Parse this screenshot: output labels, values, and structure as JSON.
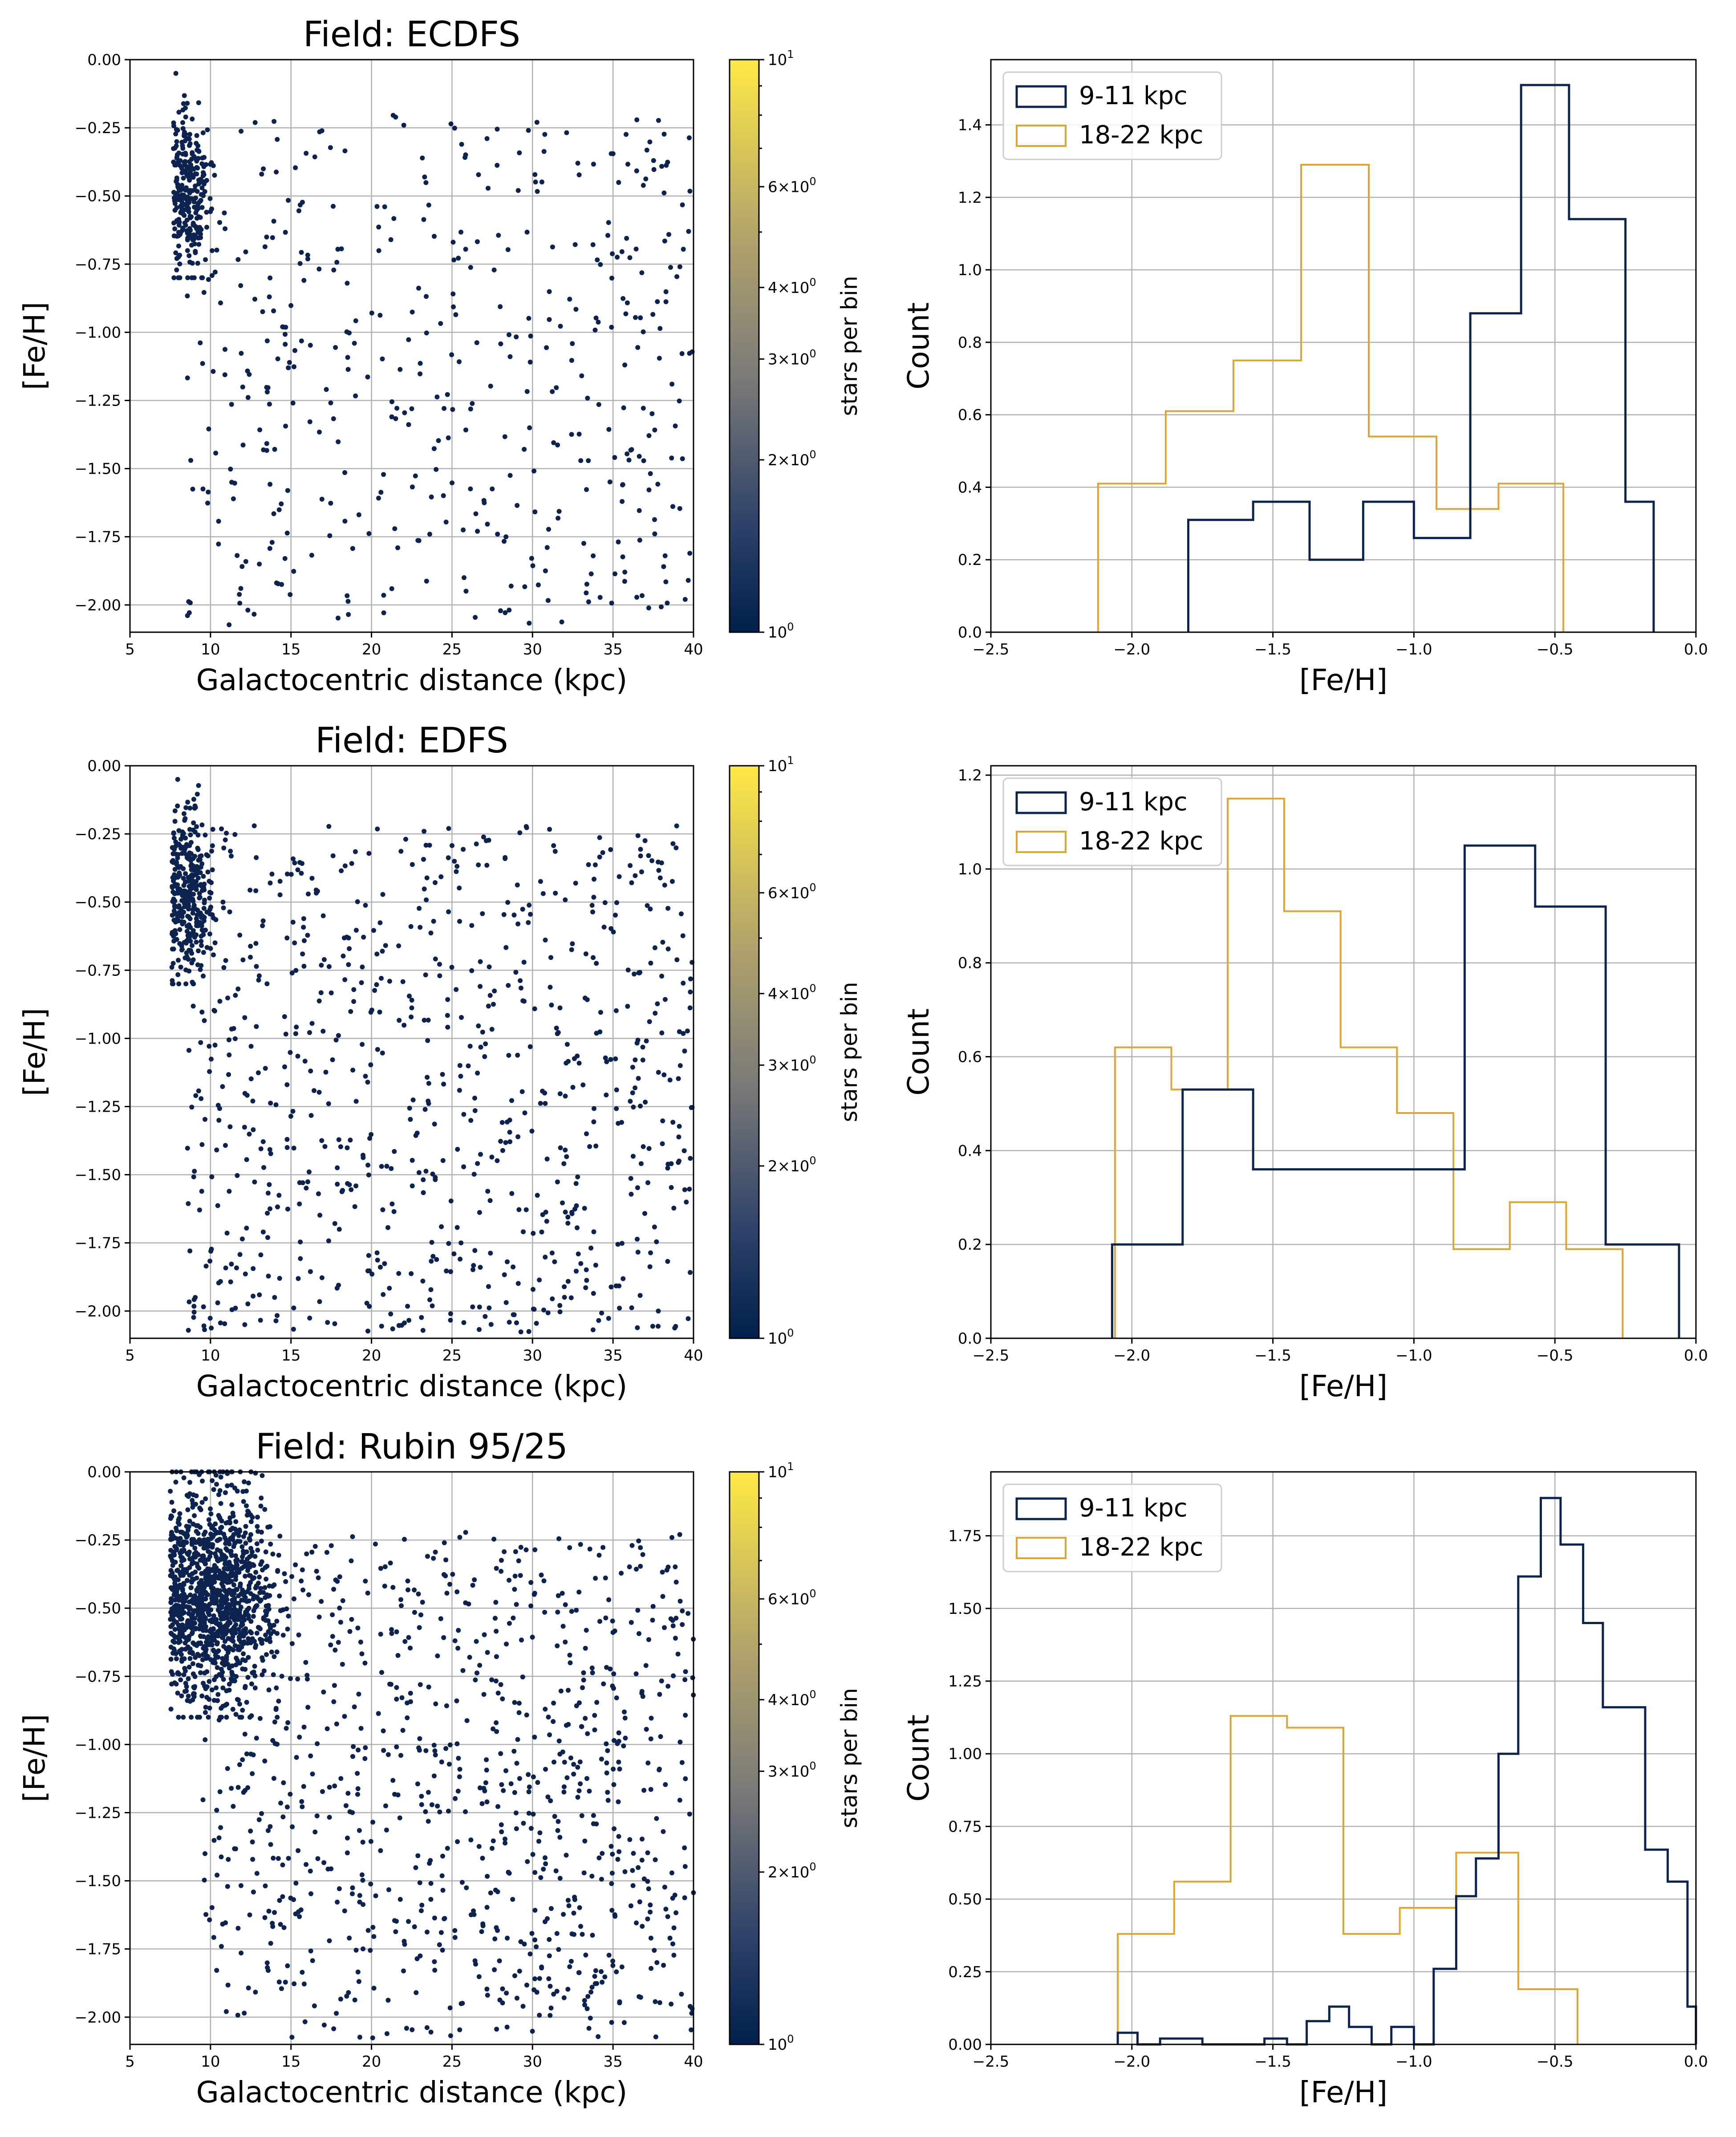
{
  "figure": {
    "colors": {
      "point": "#0c2350",
      "inner": "#0c2350",
      "outer": "#dba633",
      "cmap_low": "#00204c",
      "cmap_mid": "#7c7b78",
      "cmap_high": "#ffe945",
      "grid": "#b0b0b0"
    },
    "rows": [
      {
        "scatter_title": "Field: ECDFS"
      },
      {
        "scatter_title": "Field: EDFS"
      },
      {
        "scatter_title": "Field: Rubin 95/25"
      }
    ]
  },
  "chart_data": [
    {
      "panel": "ECDFS scatter",
      "type": "scatter",
      "title": "Field: ECDFS",
      "xlabel": "Galactocentric distance (kpc)",
      "ylabel": "[Fe/H]",
      "xlim": [
        5,
        40
      ],
      "ylim": [
        -2.1,
        0.0
      ],
      "xticks": [
        5,
        10,
        15,
        20,
        25,
        30,
        35,
        40
      ],
      "xtick_labels": [
        "5",
        "10",
        "15",
        "20",
        "25",
        "30",
        "35",
        "40"
      ],
      "yticks": [
        0.0,
        -0.25,
        -0.5,
        -0.75,
        -1.0,
        -1.25,
        -1.5,
        -1.75,
        -2.0
      ],
      "ytick_labels": [
        "0.00",
        "−0.25",
        "−0.50",
        "−0.75",
        "−1.00",
        "−1.25",
        "−1.50",
        "−1.75",
        "−2.00"
      ],
      "grid": true,
      "generator": {
        "seed": 11,
        "clump_n": 260,
        "clump_x": [
          7.7,
          10.3
        ],
        "clump_y": [
          -0.05,
          -0.8
        ],
        "clump_mean": -0.5,
        "clump_sd": 0.15,
        "field_n": 460,
        "field_x": [
          8.5,
          40
        ],
        "field_y": [
          -2.08,
          -0.2
        ]
      },
      "colorbar": {
        "label": "stars per bin",
        "ticks": [
          {
            "base": "10",
            "exp": "0",
            "v": 1
          },
          {
            "base": "2×10",
            "exp": "0",
            "v": 2
          },
          {
            "base": "3×10",
            "exp": "0",
            "v": 3
          },
          {
            "base": "4×10",
            "exp": "0",
            "v": 4
          },
          {
            "base": "6×10",
            "exp": "0",
            "v": 6
          },
          {
            "base": "10",
            "exp": "1",
            "v": 10
          }
        ]
      }
    },
    {
      "panel": "ECDFS histogram",
      "type": "histogram",
      "xlabel": "[Fe/H]",
      "ylabel": "Count",
      "xlim": [
        -2.5,
        0.0
      ],
      "ylim": [
        0.0,
        1.58
      ],
      "xticks": [
        -2.5,
        -2.0,
        -1.5,
        -1.0,
        -0.5,
        0.0
      ],
      "xtick_labels": [
        "−2.5",
        "−2.0",
        "−1.5",
        "−1.0",
        "−0.5",
        "0.0"
      ],
      "yticks": [
        0.0,
        0.2,
        0.4,
        0.6,
        0.8,
        1.0,
        1.2,
        1.4
      ],
      "ytick_labels": [
        "0.0",
        "0.2",
        "0.4",
        "0.6",
        "0.8",
        "1.0",
        "1.2",
        "1.4"
      ],
      "grid": true,
      "legend_position": "upper-left",
      "series": [
        {
          "name": "9-11 kpc",
          "color_key": "inner",
          "edges": [
            -1.8,
            -1.57,
            -1.37,
            -1.18,
            -1.0,
            -0.8,
            -0.62,
            -0.45,
            -0.25,
            -0.15
          ],
          "values": [
            0.31,
            0.36,
            0.2,
            0.36,
            0.26,
            0.88,
            1.51,
            1.14,
            0.36
          ]
        },
        {
          "name": "18-22 kpc",
          "color_key": "outer",
          "edges": [
            -2.12,
            -1.88,
            -1.64,
            -1.4,
            -1.16,
            -0.92,
            -0.7,
            -0.47
          ],
          "values": [
            0.41,
            0.61,
            0.75,
            1.29,
            0.54,
            0.34,
            0.41
          ]
        }
      ]
    },
    {
      "panel": "EDFS scatter",
      "type": "scatter",
      "title": "Field: EDFS",
      "xlabel": "Galactocentric distance (kpc)",
      "ylabel": "[Fe/H]",
      "xlim": [
        5,
        40
      ],
      "ylim": [
        -2.1,
        0.0
      ],
      "xticks": [
        5,
        10,
        15,
        20,
        25,
        30,
        35,
        40
      ],
      "xtick_labels": [
        "5",
        "10",
        "15",
        "20",
        "25",
        "30",
        "35",
        "40"
      ],
      "yticks": [
        0.0,
        -0.25,
        -0.5,
        -0.75,
        -1.0,
        -1.25,
        -1.5,
        -1.75,
        -2.0
      ],
      "ytick_labels": [
        "0.00",
        "−0.25",
        "−0.50",
        "−0.75",
        "−1.00",
        "−1.25",
        "−1.50",
        "−1.75",
        "−2.00"
      ],
      "grid": true,
      "generator": {
        "seed": 23,
        "clump_n": 320,
        "clump_x": [
          7.6,
          10.3
        ],
        "clump_y": [
          -0.05,
          -0.8
        ],
        "clump_mean": -0.48,
        "clump_sd": 0.16,
        "field_n": 800,
        "field_x": [
          8.5,
          40
        ],
        "field_y": [
          -2.08,
          -0.22
        ]
      },
      "colorbar": {
        "label": "stars per bin",
        "ticks": [
          {
            "base": "10",
            "exp": "0",
            "v": 1
          },
          {
            "base": "2×10",
            "exp": "0",
            "v": 2
          },
          {
            "base": "3×10",
            "exp": "0",
            "v": 3
          },
          {
            "base": "4×10",
            "exp": "0",
            "v": 4
          },
          {
            "base": "6×10",
            "exp": "0",
            "v": 6
          },
          {
            "base": "10",
            "exp": "1",
            "v": 10
          }
        ]
      }
    },
    {
      "panel": "EDFS histogram",
      "type": "histogram",
      "xlabel": "[Fe/H]",
      "ylabel": "Count",
      "xlim": [
        -2.5,
        0.0
      ],
      "ylim": [
        0.0,
        1.22
      ],
      "xticks": [
        -2.5,
        -2.0,
        -1.5,
        -1.0,
        -0.5,
        0.0
      ],
      "xtick_labels": [
        "−2.5",
        "−2.0",
        "−1.5",
        "−1.0",
        "−0.5",
        "0.0"
      ],
      "yticks": [
        0.0,
        0.2,
        0.4,
        0.6,
        0.8,
        1.0,
        1.2
      ],
      "ytick_labels": [
        "0.0",
        "0.2",
        "0.4",
        "0.6",
        "0.8",
        "1.0",
        "1.2"
      ],
      "grid": true,
      "legend_position": "upper-left",
      "series": [
        {
          "name": "9-11 kpc",
          "color_key": "inner",
          "edges": [
            -2.07,
            -1.82,
            -1.57,
            -1.32,
            -1.07,
            -0.82,
            -0.57,
            -0.32,
            -0.06
          ],
          "values": [
            0.2,
            0.53,
            0.36,
            0.36,
            0.36,
            1.05,
            0.92,
            0.2
          ]
        },
        {
          "name": "18-22 kpc",
          "color_key": "outer",
          "edges": [
            -2.06,
            -1.86,
            -1.66,
            -1.46,
            -1.26,
            -1.06,
            -0.86,
            -0.66,
            -0.46,
            -0.26
          ],
          "values": [
            0.62,
            0.53,
            1.15,
            0.91,
            0.62,
            0.48,
            0.19,
            0.29,
            0.19
          ]
        }
      ]
    },
    {
      "panel": "Rubin 95/25 scatter",
      "type": "scatter",
      "title": "Field: Rubin 95/25",
      "xlabel": "Galactocentric distance (kpc)",
      "ylabel": "[Fe/H]",
      "xlim": [
        5,
        40
      ],
      "ylim": [
        -2.1,
        0.0
      ],
      "xticks": [
        5,
        10,
        15,
        20,
        25,
        30,
        35,
        40
      ],
      "xtick_labels": [
        "5",
        "10",
        "15",
        "20",
        "25",
        "30",
        "35",
        "40"
      ],
      "yticks": [
        0.0,
        -0.25,
        -0.5,
        -0.75,
        -1.0,
        -1.25,
        -1.5,
        -1.75,
        -2.0
      ],
      "ytick_labels": [
        "0.00",
        "−0.25",
        "−0.50",
        "−0.75",
        "−1.00",
        "−1.25",
        "−1.50",
        "−1.75",
        "−2.00"
      ],
      "grid": true,
      "generator": {
        "seed": 37,
        "clump_n": 1150,
        "clump_x": [
          7.5,
          14.5
        ],
        "clump_y": [
          0.0,
          -0.9
        ],
        "clump_mean": -0.45,
        "clump_sd": 0.2,
        "field_n": 920,
        "field_x": [
          9.5,
          40
        ],
        "field_y": [
          -2.08,
          -0.22
        ]
      },
      "colorbar": {
        "label": "stars per bin",
        "ticks": [
          {
            "base": "10",
            "exp": "0",
            "v": 1
          },
          {
            "base": "2×10",
            "exp": "0",
            "v": 2
          },
          {
            "base": "3×10",
            "exp": "0",
            "v": 3
          },
          {
            "base": "4×10",
            "exp": "0",
            "v": 4
          },
          {
            "base": "6×10",
            "exp": "0",
            "v": 6
          },
          {
            "base": "10",
            "exp": "1",
            "v": 10
          }
        ]
      }
    },
    {
      "panel": "Rubin 95/25 histogram",
      "type": "histogram",
      "xlabel": "[Fe/H]",
      "ylabel": "Count",
      "xlim": [
        -2.5,
        0.0
      ],
      "ylim": [
        0.0,
        1.97
      ],
      "xticks": [
        -2.5,
        -2.0,
        -1.5,
        -1.0,
        -0.5,
        0.0
      ],
      "xtick_labels": [
        "−2.5",
        "−2.0",
        "−1.5",
        "−1.0",
        "−0.5",
        "0.0"
      ],
      "yticks": [
        0.0,
        0.25,
        0.5,
        0.75,
        1.0,
        1.25,
        1.5,
        1.75
      ],
      "ytick_labels": [
        "0.00",
        "0.25",
        "0.50",
        "0.75",
        "1.00",
        "1.25",
        "1.50",
        "1.75"
      ],
      "grid": true,
      "legend_position": "upper-left",
      "series": [
        {
          "name": "9-11 kpc",
          "color_key": "inner",
          "edges": [
            -2.05,
            -1.98,
            -1.9,
            -1.83,
            -1.75,
            -1.68,
            -1.6,
            -1.53,
            -1.45,
            -1.38,
            -1.3,
            -1.23,
            -1.15,
            -1.08,
            -1.0,
            -0.93,
            -0.85,
            -0.78,
            -0.7,
            -0.63,
            -0.55,
            -0.48,
            -0.4,
            -0.33,
            -0.25,
            -0.18,
            -0.1,
            -0.03,
            0.0
          ],
          "values": [
            0.04,
            0.0,
            0.02,
            0.02,
            0.0,
            0.0,
            0.0,
            0.02,
            0.0,
            0.08,
            0.13,
            0.06,
            0.0,
            0.06,
            0.0,
            0.26,
            0.51,
            0.64,
            1.0,
            1.61,
            1.88,
            1.72,
            1.45,
            1.16,
            1.16,
            0.67,
            0.56,
            0.13
          ]
        },
        {
          "name": "18-22 kpc",
          "color_key": "outer",
          "edges": [
            -2.05,
            -1.85,
            -1.65,
            -1.45,
            -1.25,
            -1.05,
            -0.85,
            -0.63,
            -0.42
          ],
          "values": [
            0.38,
            0.56,
            1.13,
            1.09,
            0.38,
            0.47,
            0.66,
            0.19
          ]
        }
      ]
    }
  ]
}
